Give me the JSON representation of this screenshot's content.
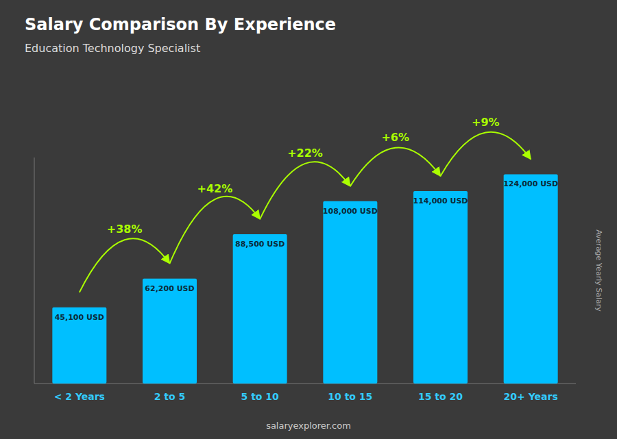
{
  "chart_data": {
    "type": "bar",
    "title": "Salary Comparison By Experience",
    "subtitle": "Education Technology Specialist",
    "categories": [
      "< 2 Years",
      "2 to 5",
      "5 to 10",
      "10 to 15",
      "15 to 20",
      "20+ Years"
    ],
    "values": [
      45100,
      62200,
      88500,
      108000,
      114000,
      124000
    ],
    "value_labels": [
      "45,100 USD",
      "62,200 USD",
      "88,500 USD",
      "108,000 USD",
      "114,000 USD",
      "124,000 USD"
    ],
    "data_labels": true,
    "annotations": [
      "+38%",
      "+42%",
      "+22%",
      "+6%",
      "+9%"
    ],
    "y_label": "Average Yearly Salary",
    "source": "salaryexplorer.com",
    "color": "#00BFFF",
    "ylim": [
      0,
      133920
    ],
    "tick_labels": "x",
    "grid": false
  }
}
